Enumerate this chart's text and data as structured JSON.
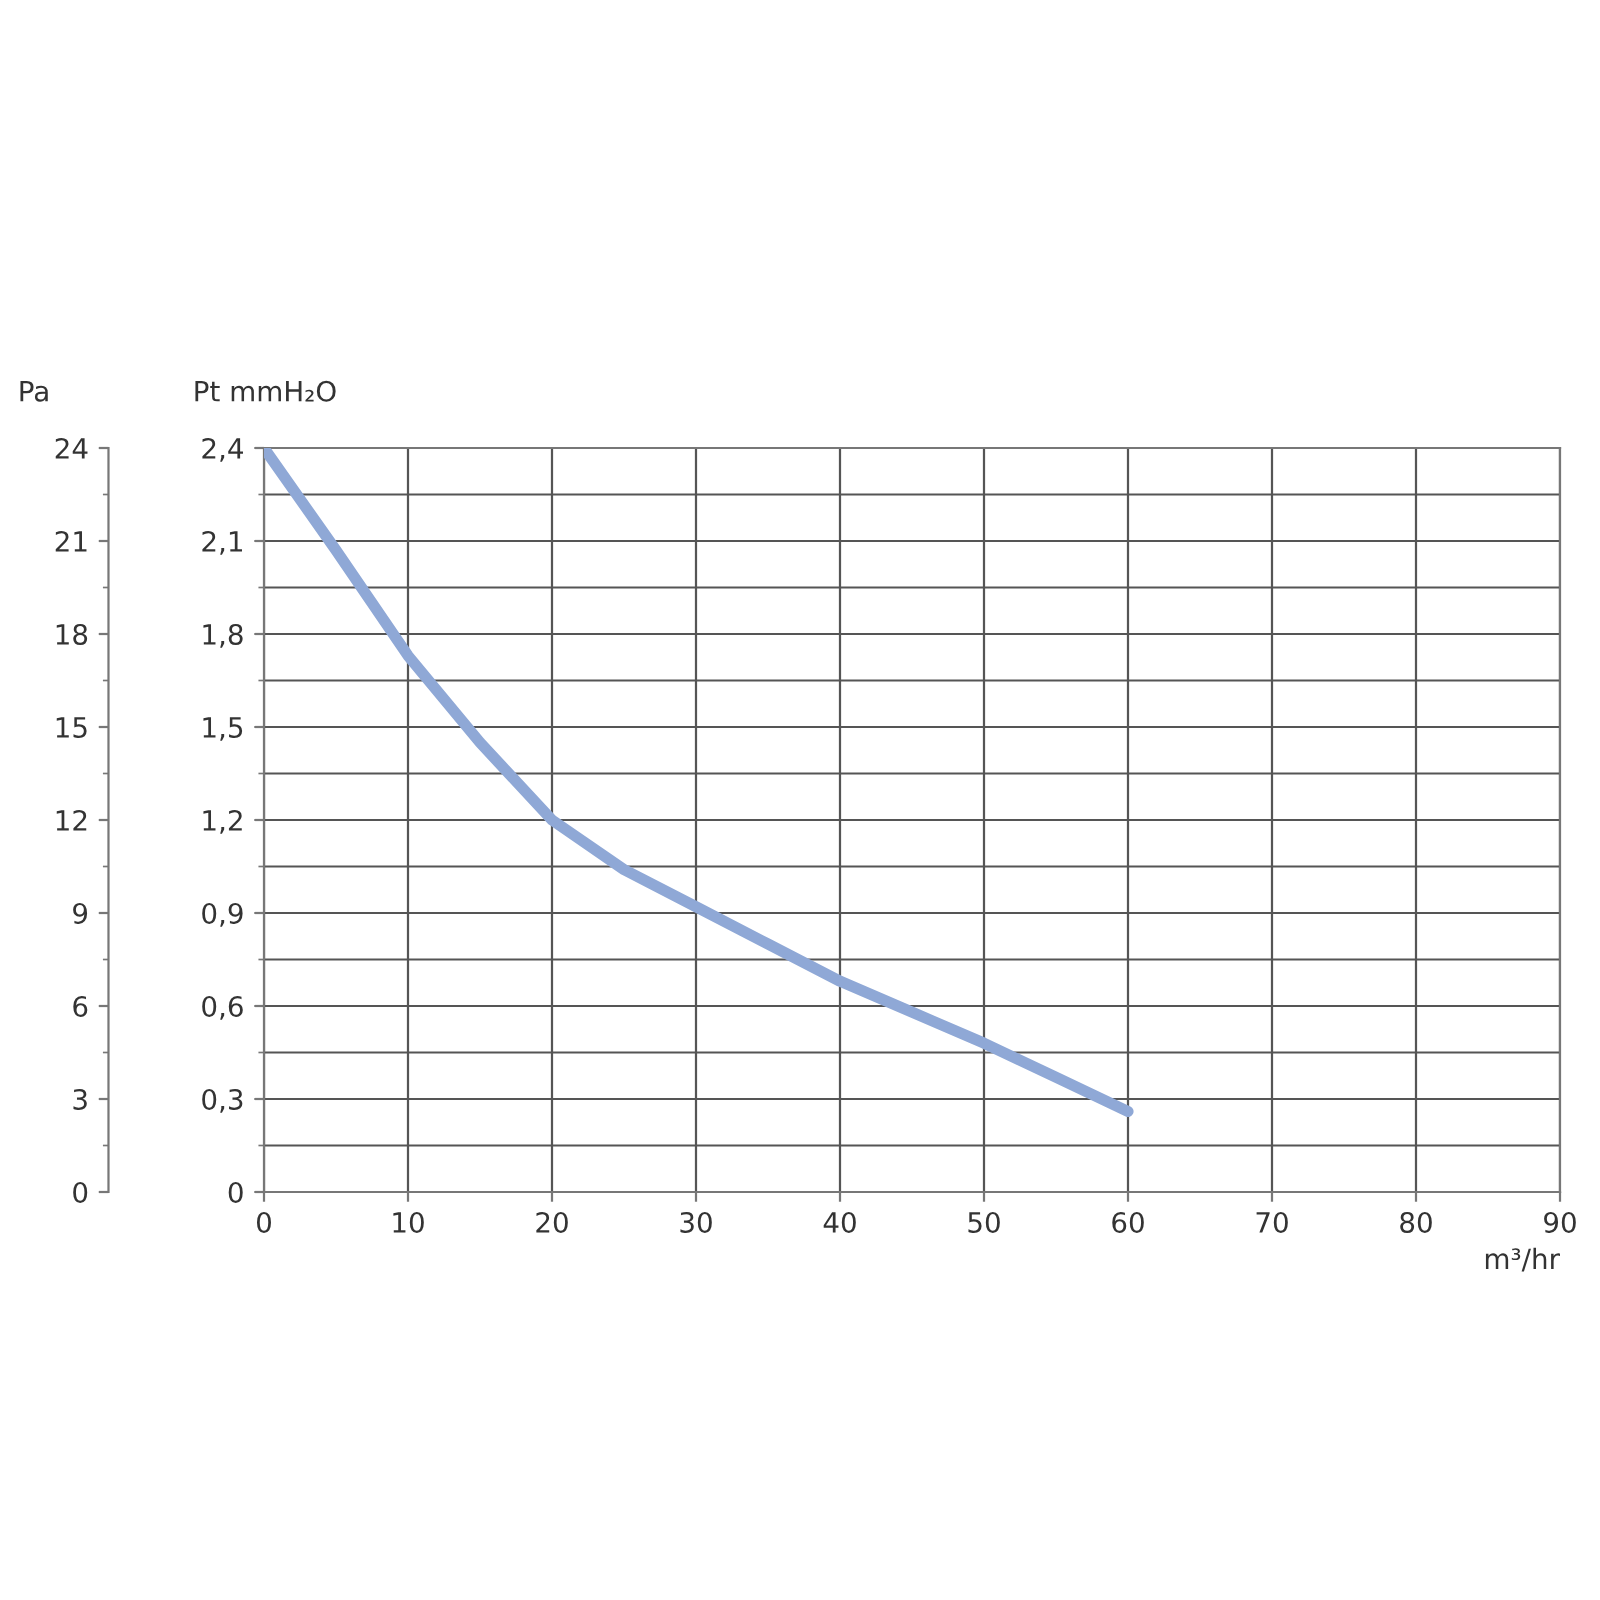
{
  "chart_data": {
    "type": "line",
    "xlabel": "m³/hr",
    "ylabel": "Pt mmH₂O",
    "y2label": "Pa",
    "x": [
      0,
      5,
      10,
      15,
      20,
      25,
      30,
      35,
      40,
      45,
      50,
      55,
      60
    ],
    "series": [
      {
        "color": "#8fa8d6",
        "values": [
          2.4,
          2.07,
          1.73,
          1.45,
          1.2,
          1.04,
          0.92,
          0.8,
          0.68,
          0.58,
          0.48,
          0.37,
          0.26
        ]
      }
    ],
    "xlim": [
      0,
      90
    ],
    "xticks": [
      0,
      10,
      20,
      30,
      40,
      50,
      60,
      70,
      80,
      90
    ],
    "ylim": [
      0,
      2.4
    ],
    "yticks": [
      0,
      {
        "value": 0.3,
        "label": "0,3"
      },
      {
        "value": 0.6,
        "label": "0,6"
      },
      {
        "value": 0.9,
        "label": "0,9"
      },
      {
        "value": 1.2,
        "label": "1,2"
      },
      {
        "value": 1.5,
        "label": "1,5"
      },
      {
        "value": 1.8,
        "label": "1,8"
      },
      {
        "value": 2.1,
        "label": "2,1"
      },
      {
        "value": 2.4,
        "label": "2,4"
      }
    ],
    "y2lim": [
      0,
      24
    ],
    "y2ticks": [
      0,
      3,
      6,
      9,
      12,
      15,
      18,
      21,
      24
    ],
    "grid": true,
    "line_style": "solid",
    "marker": "none"
  }
}
